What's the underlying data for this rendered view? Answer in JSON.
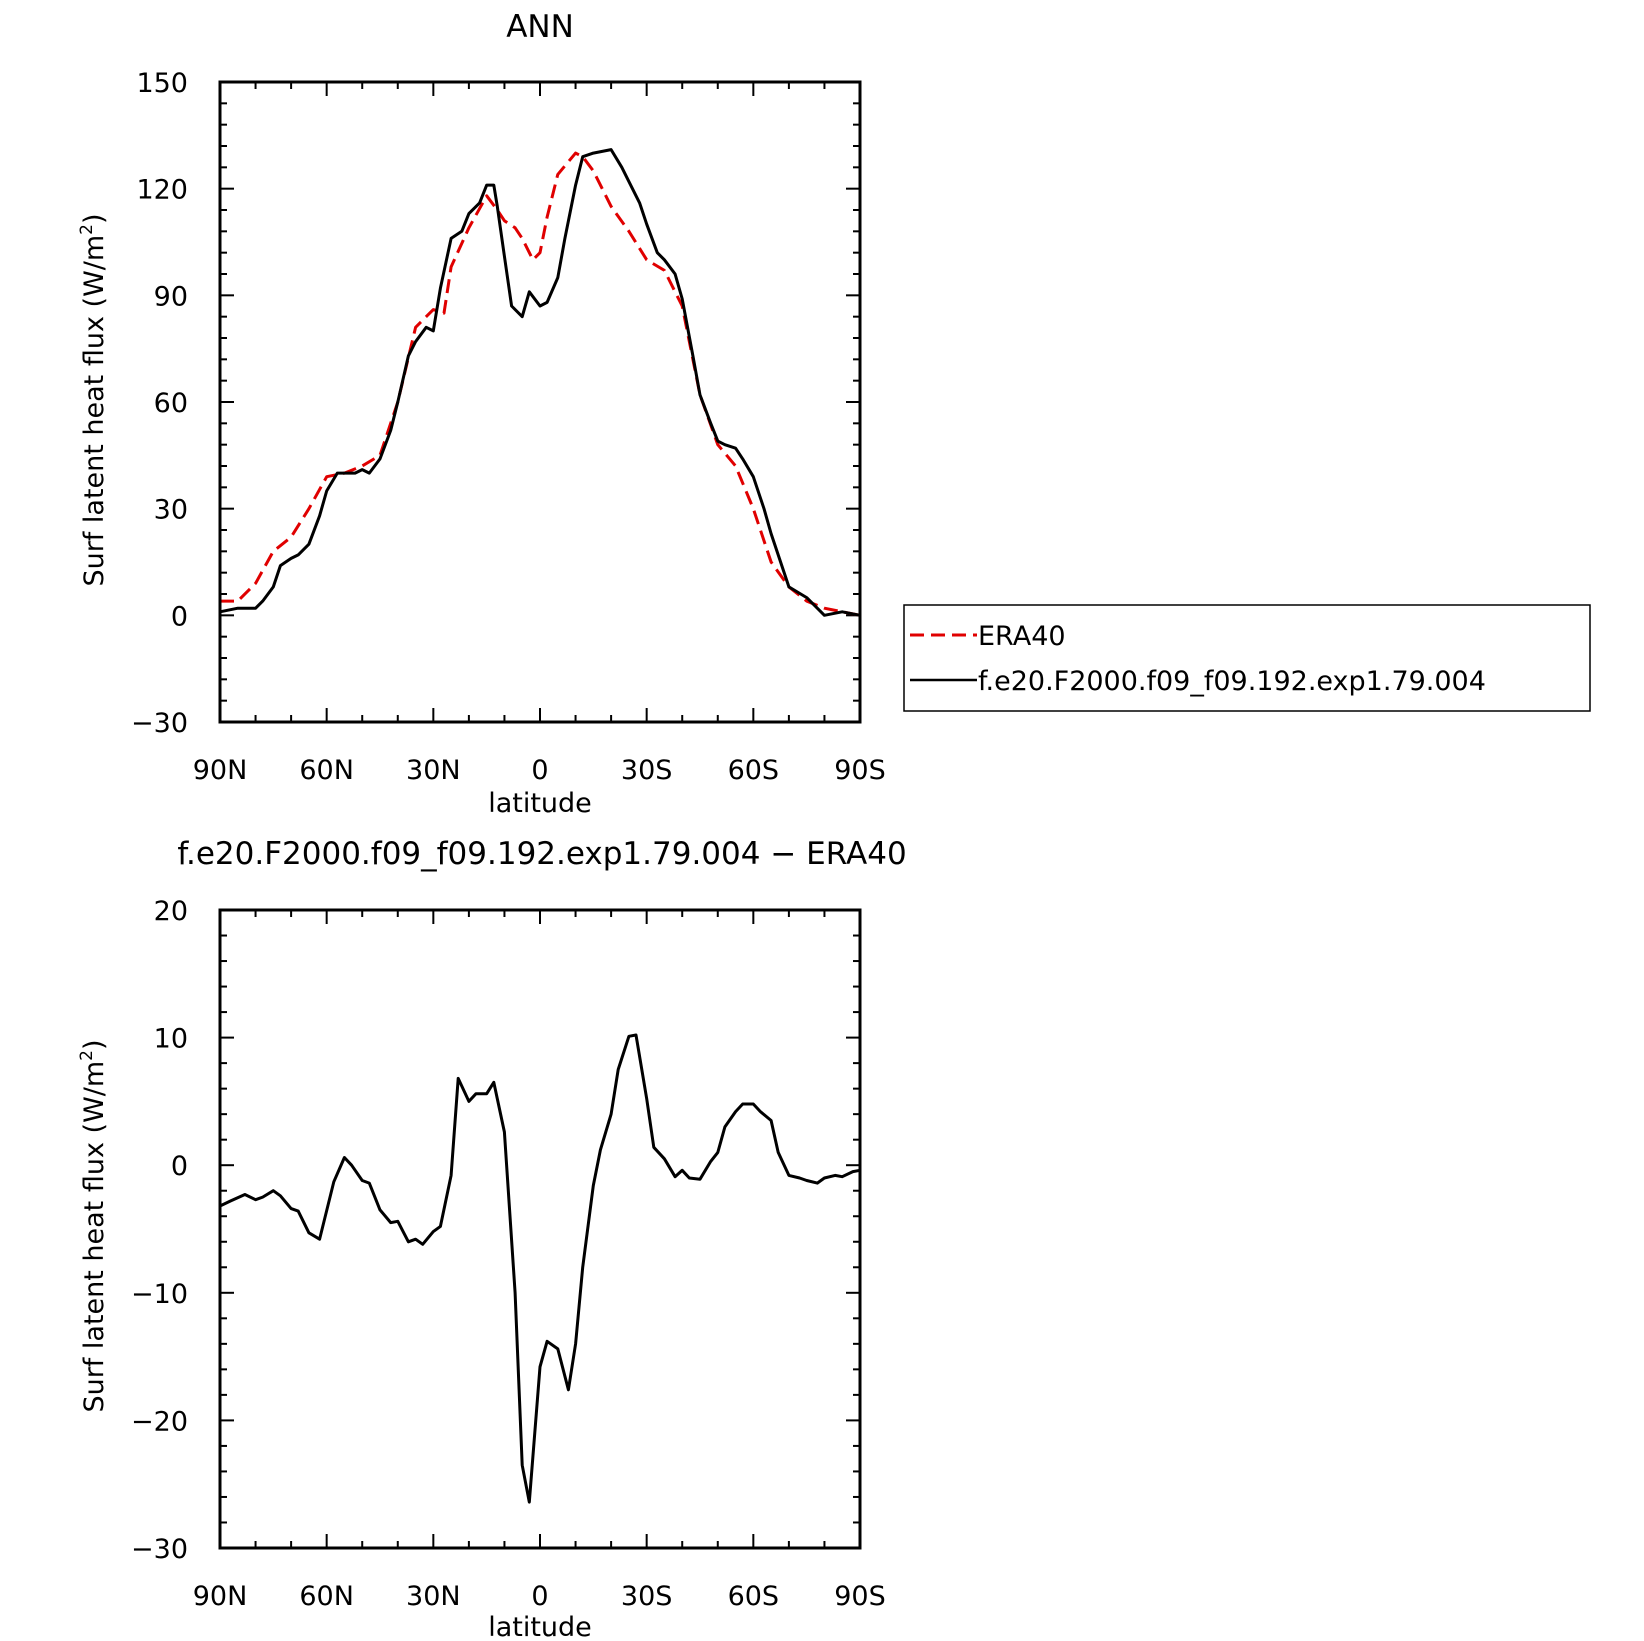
{
  "charts": [
    {
      "title": "ANN",
      "xlabel": "latitude",
      "ylabel": "Surf latent heat flux (W/m²)",
      "ylabel_parts": {
        "main": "Surf latent heat flux (W/m",
        "sup": "2",
        "end": ")"
      },
      "yticks": [
        "150",
        "120",
        "90",
        "60",
        "30",
        "0",
        "−30"
      ],
      "xticks": [
        "90N",
        "60N",
        "30N",
        "0",
        "30S",
        "60S",
        "90S"
      ],
      "legend": [
        "ERA40",
        "f.e20.F2000.f09_f09.192.exp1.79.004"
      ]
    },
    {
      "title": "f.e20.F2000.f09_f09.192.exp1.79.004 − ERA40",
      "xlabel": "latitude",
      "ylabel": "Surf latent heat flux (W/m²)",
      "ylabel_parts": {
        "main": "Surf latent heat flux (W/m",
        "sup": "2",
        "end": ")"
      },
      "yticks": [
        "20",
        "10",
        "0",
        "−10",
        "−20",
        "−30"
      ],
      "xticks": [
        "90N",
        "60N",
        "30N",
        "0",
        "30S",
        "60S",
        "90S"
      ]
    }
  ],
  "chart_data": [
    {
      "type": "line",
      "title": "ANN",
      "xlabel": "latitude",
      "ylabel": "Surf latent heat flux (W/m²)",
      "xlim": [
        90,
        -90
      ],
      "ylim": [
        -30,
        150
      ],
      "x_direction": "90N to 90S",
      "legend_placement": "right",
      "series": [
        {
          "name": "ERA40",
          "color": "#e00000",
          "dash": "dashed",
          "x": [
            90,
            85,
            80,
            75,
            70,
            65,
            60,
            55,
            50,
            45,
            40,
            35,
            30,
            27,
            25,
            20,
            15,
            12,
            10,
            7,
            5,
            2,
            0,
            -2,
            -5,
            -10,
            -12,
            -15,
            -20,
            -25,
            -30,
            -35,
            -40,
            -45,
            -50,
            -55,
            -60,
            -65,
            -70,
            -75,
            -80,
            -85,
            -90
          ],
          "y": [
            4,
            4,
            9,
            18,
            22,
            30,
            39,
            40,
            42,
            45,
            60,
            81,
            86,
            85,
            98,
            109,
            118,
            114,
            111,
            109,
            106,
            100,
            102,
            112,
            124,
            130,
            129,
            125,
            115,
            108,
            100,
            97,
            87,
            62,
            48,
            42,
            30,
            15,
            8,
            4,
            2,
            1,
            0
          ]
        },
        {
          "name": "f.e20.F2000.f09_f09.192.exp1.79.004",
          "color": "#000000",
          "dash": "solid",
          "x": [
            90,
            85,
            80,
            78,
            75,
            73,
            70,
            68,
            65,
            62,
            60,
            57,
            55,
            52,
            50,
            48,
            45,
            42,
            40,
            37,
            35,
            32,
            30,
            28,
            25,
            22,
            20,
            17,
            15,
            13,
            12,
            10,
            8,
            5,
            3,
            0,
            -2,
            -5,
            -7,
            -10,
            -12,
            -15,
            -20,
            -23,
            -25,
            -28,
            -30,
            -33,
            -35,
            -38,
            -40,
            -43,
            -45,
            -48,
            -50,
            -52,
            -55,
            -57,
            -60,
            -63,
            -65,
            -70,
            -75,
            -80,
            -85,
            -90
          ],
          "y": [
            1,
            2,
            2,
            4,
            8,
            14,
            16,
            17,
            20,
            28,
            35,
            40,
            40,
            40,
            41,
            40,
            44,
            52,
            60,
            73,
            77,
            81,
            80,
            92,
            106,
            108,
            113,
            116,
            121,
            121,
            115,
            101,
            87,
            84,
            91,
            87,
            88,
            95,
            106,
            121,
            129,
            130,
            131,
            126,
            122,
            116,
            110,
            102,
            100,
            96,
            89,
            73,
            62,
            54,
            49,
            48,
            47,
            44,
            39,
            30,
            23,
            8,
            5,
            0,
            1,
            0
          ]
        }
      ]
    },
    {
      "type": "line",
      "title": "f.e20.F2000.f09_f09.192.exp1.79.004 − ERA40",
      "xlabel": "latitude",
      "ylabel": "Surf latent heat flux (W/m²)",
      "xlim": [
        90,
        -90
      ],
      "ylim": [
        -30,
        20
      ],
      "x_direction": "90N to 90S",
      "series": [
        {
          "color": "#000000",
          "dash": "solid",
          "x": [
            90,
            87,
            83,
            80,
            78,
            75,
            73,
            70,
            68,
            65,
            62,
            58,
            55,
            53,
            50,
            48,
            45,
            42,
            40,
            37,
            35,
            33,
            30,
            28,
            25,
            23,
            20,
            18,
            15,
            13,
            10,
            7,
            5,
            3,
            0,
            -2,
            -5,
            -8,
            -10,
            -12,
            -15,
            -17,
            -20,
            -22,
            -25,
            -27,
            -30,
            -32,
            -35,
            -38,
            -40,
            -42,
            -45,
            -48,
            -50,
            -52,
            -55,
            -57,
            -60,
            -62,
            -65,
            -67,
            -70,
            -73,
            -75,
            -78,
            -80,
            -83,
            -85,
            -88,
            -90
          ],
          "y": [
            -3.2,
            -2.8,
            -2.3,
            -2.7,
            -2.5,
            -2,
            -2.4,
            -3.4,
            -3.6,
            -5.3,
            -5.8,
            -1.3,
            0.6,
            0,
            -1.2,
            -1.4,
            -3.5,
            -4.5,
            -4.4,
            -6,
            -5.8,
            -6.2,
            -5.2,
            -4.8,
            -0.8,
            6.8,
            5,
            5.6,
            5.6,
            6.5,
            2.6,
            -10,
            -23.5,
            -26.4,
            -15.8,
            -13.8,
            -14.4,
            -17.6,
            -14,
            -8,
            -1.6,
            1.2,
            4,
            7.5,
            10.1,
            10.2,
            5.2,
            1.4,
            0.5,
            -0.9,
            -0.4,
            -1,
            -1.1,
            0.3,
            1,
            3,
            4.2,
            4.8,
            4.8,
            4.2,
            3.5,
            1,
            -0.8,
            -1,
            -1.2,
            -1.4,
            -1,
            -0.8,
            -0.9,
            -0.5,
            -0.4
          ]
        }
      ]
    }
  ]
}
